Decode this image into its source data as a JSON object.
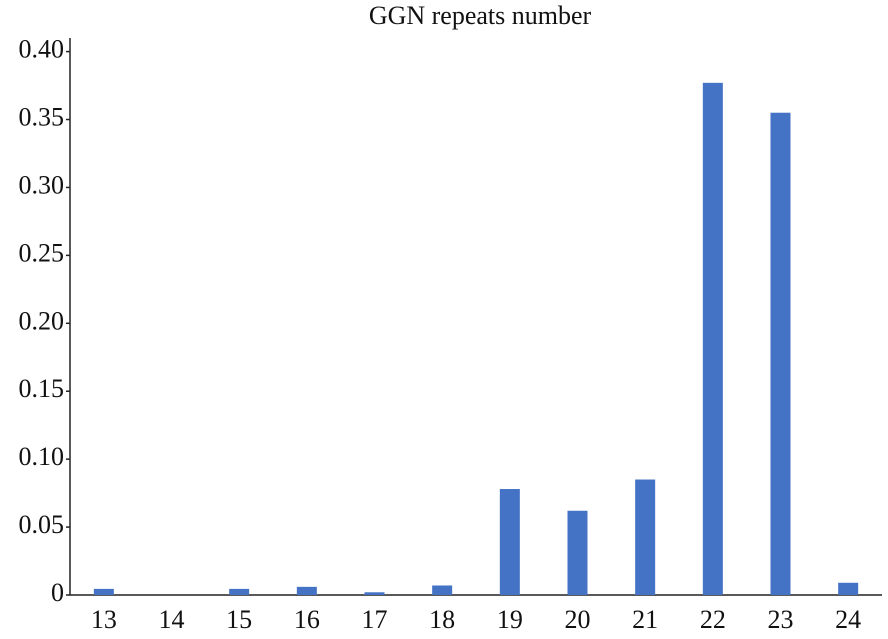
{
  "chart_data": {
    "type": "bar",
    "title": "GGN repeats number",
    "categories": [
      "13",
      "14",
      "15",
      "16",
      "17",
      "18",
      "19",
      "20",
      "21",
      "22",
      "23",
      "24"
    ],
    "values": [
      0.0045,
      0,
      0.0045,
      0.006,
      0.002,
      0.007,
      0.078,
      0.062,
      0.085,
      0.377,
      0.355,
      0.009
    ],
    "color": "#4472c4",
    "ylim": [
      0,
      0.41
    ],
    "yticks": [
      0,
      0.05,
      {
        "value": 0.1,
        "label": "0.10"
      },
      0.15,
      {
        "value": 0.2,
        "label": "0.20"
      },
      0.25,
      {
        "value": 0.3,
        "label": "0.30"
      },
      0.35,
      {
        "value": 0.4,
        "label": "0.40"
      }
    ],
    "grid": false
  }
}
